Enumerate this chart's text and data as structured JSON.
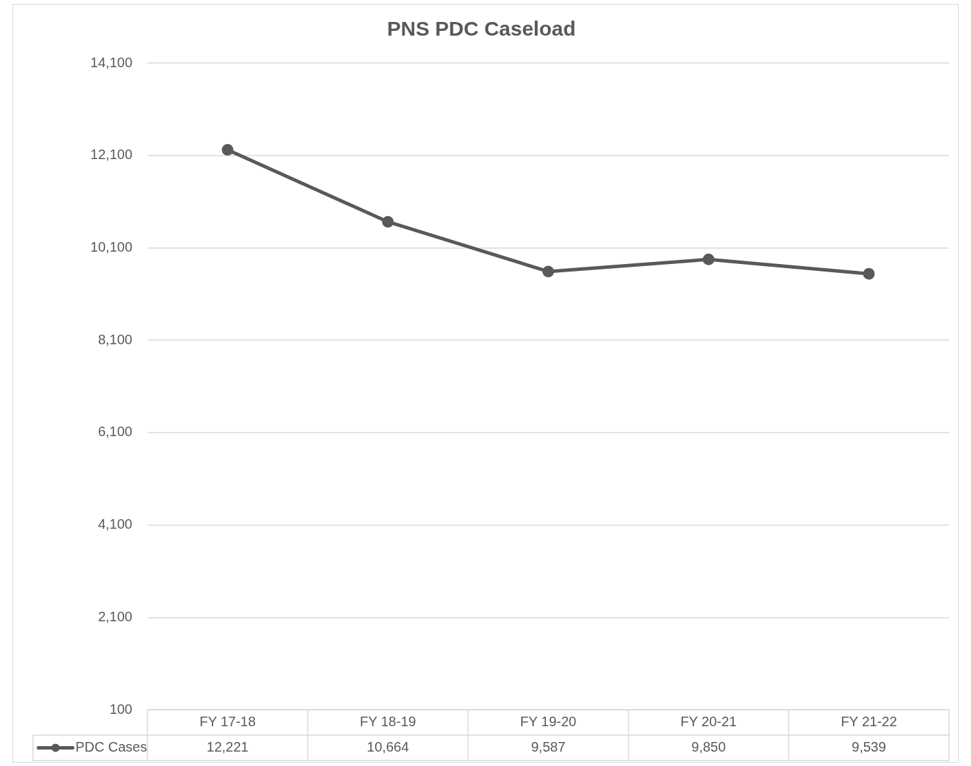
{
  "chart_data": {
    "type": "line",
    "title": "PNS PDC Caseload",
    "categories": [
      "FY 17-18",
      "FY 18-19",
      "FY 19-20",
      "FY 20-21",
      "FY 21-22"
    ],
    "series": [
      {
        "name": "PDC Cases",
        "color": "#595959",
        "values": [
          12221,
          10664,
          9587,
          9850,
          9539
        ],
        "value_labels": [
          "12,221",
          "10,664",
          "9,587",
          "9,850",
          "9,539"
        ]
      }
    ],
    "ylim": [
      100,
      14100
    ],
    "yticks": [
      {
        "value": 100,
        "label": "100"
      },
      {
        "value": 2100,
        "label": "2,100"
      },
      {
        "value": 4100,
        "label": "4,100"
      },
      {
        "value": 6100,
        "label": "6,100"
      },
      {
        "value": 8100,
        "label": "8,100"
      },
      {
        "value": 10100,
        "label": "10,100"
      },
      {
        "value": 12100,
        "label": "12,100"
      },
      {
        "value": 14100,
        "label": "14,100"
      }
    ],
    "grid": "y",
    "legend": "bottom",
    "marker": "circle",
    "line_style": "solid"
  }
}
